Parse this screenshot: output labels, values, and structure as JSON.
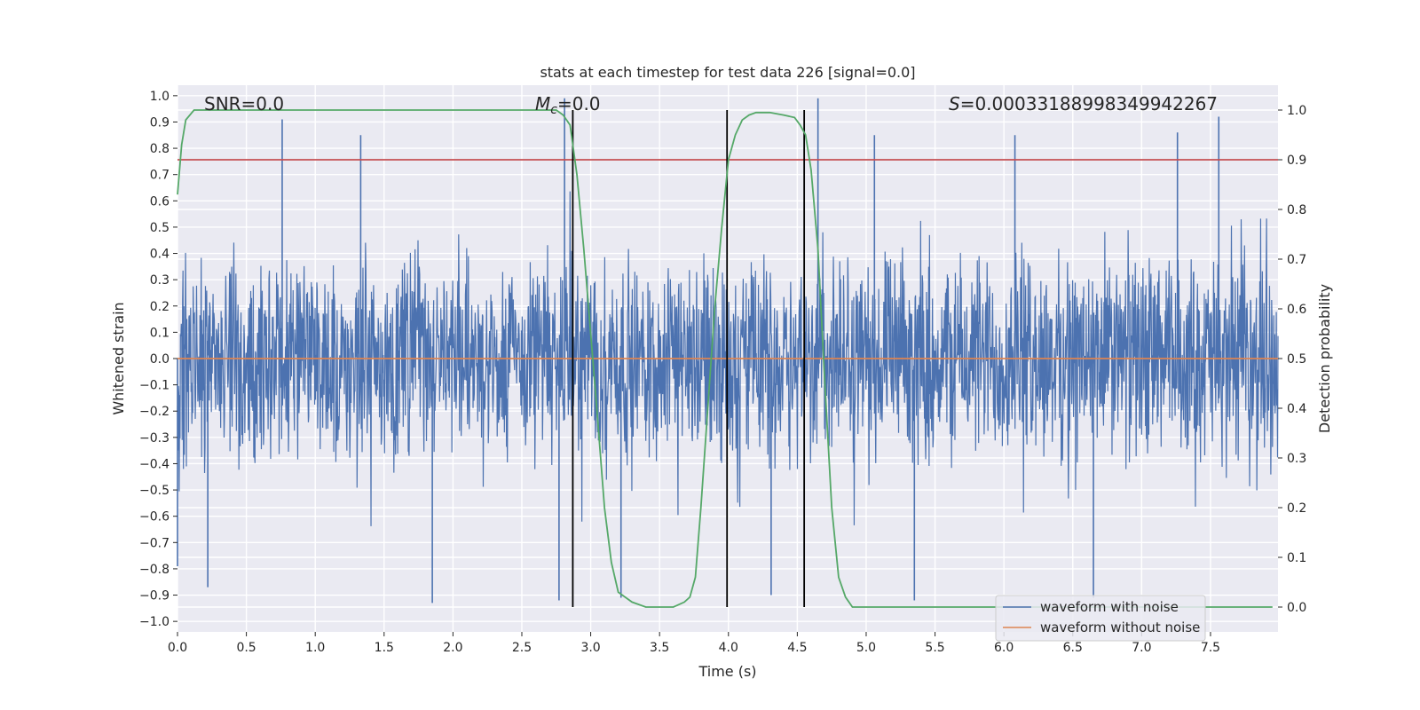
{
  "chart_data": {
    "type": "line",
    "title": "stats at each timestep for test data 226 [signal=0.0]",
    "xlabel": "Time (s)",
    "ylabel_left": "Whitened strain",
    "ylabel_right": "Detection probability",
    "xlim": [
      0,
      7.99
    ],
    "ylim_left": [
      -1.04,
      1.04
    ],
    "ylim_right": [
      -0.05,
      1.05
    ],
    "x_ticks": [
      "0.0",
      "0.5",
      "1.0",
      "1.5",
      "2.0",
      "2.5",
      "3.0",
      "3.5",
      "4.0",
      "4.5",
      "5.0",
      "5.5",
      "6.0",
      "6.5",
      "7.0",
      "7.5"
    ],
    "y_left_ticks": [
      "1.0",
      "0.9",
      "0.8",
      "0.7",
      "0.6",
      "0.5",
      "0.4",
      "0.3",
      "0.2",
      "0.1",
      "0.0",
      "-0.1",
      "-0.2",
      "-0.3",
      "-0.4",
      "-0.5",
      "-0.6",
      "-0.7",
      "-0.8",
      "-0.9",
      "-1.0"
    ],
    "y_right_ticks": [
      "1.0",
      "0.9",
      "0.8",
      "0.7",
      "0.6",
      "0.5",
      "0.4",
      "0.3",
      "0.2",
      "0.1",
      "0.0"
    ],
    "grid": true,
    "legend_position": "lower-right",
    "annotations": {
      "snr": "SNR=0.0",
      "mc": "M_c=0.0",
      "s": "S=0.0003318899834994226​7"
    },
    "noise_waveform": {
      "name": "waveform with noise",
      "color": "#4c72b0",
      "envelope_upper_typical": 0.45,
      "envelope_lower_typical": -0.45,
      "notable_peaks": [
        {
          "x": 0.76,
          "y": 0.91
        },
        {
          "x": 1.33,
          "y": 0.85
        },
        {
          "x": 2.81,
          "y": 0.99
        },
        {
          "x": 4.65,
          "y": 0.99
        },
        {
          "x": 5.06,
          "y": 0.85
        },
        {
          "x": 7.26,
          "y": 0.86
        },
        {
          "x": 7.56,
          "y": 0.92
        },
        {
          "x": 6.08,
          "y": 0.85
        }
      ],
      "notable_troughs": [
        {
          "x": 0.22,
          "y": -0.87
        },
        {
          "x": 1.85,
          "y": -0.93
        },
        {
          "x": 2.77,
          "y": -0.92
        },
        {
          "x": 3.22,
          "y": -0.91
        },
        {
          "x": 4.31,
          "y": -0.9
        },
        {
          "x": 5.35,
          "y": -0.92
        },
        {
          "x": 6.65,
          "y": -0.91
        },
        {
          "x": 0.0,
          "y": -0.79
        }
      ]
    },
    "clean_waveform": {
      "name": "waveform without noise",
      "color": "#dd8452",
      "value": 0.0
    },
    "detection_probability": {
      "color": "#55a868",
      "x": [
        0.0,
        0.03,
        0.06,
        0.12,
        0.5,
        1.0,
        2.0,
        2.5,
        2.75,
        2.8,
        2.85,
        2.9,
        2.95,
        3.0,
        3.05,
        3.1,
        3.15,
        3.2,
        3.3,
        3.4,
        3.5,
        3.6,
        3.68,
        3.72,
        3.76,
        3.8,
        3.85,
        3.9,
        3.95,
        4.0,
        4.05,
        4.1,
        4.15,
        4.2,
        4.3,
        4.4,
        4.48,
        4.52,
        4.56,
        4.6,
        4.65,
        4.7,
        4.75,
        4.8,
        4.85,
        4.9,
        5.0,
        6.0,
        7.0,
        7.95
      ],
      "y": [
        0.83,
        0.93,
        0.98,
        1.0,
        1.0,
        1.0,
        1.0,
        1.0,
        1.0,
        0.99,
        0.97,
        0.87,
        0.72,
        0.55,
        0.38,
        0.2,
        0.09,
        0.03,
        0.01,
        0.0,
        0.0,
        0.0,
        0.01,
        0.02,
        0.06,
        0.2,
        0.4,
        0.6,
        0.76,
        0.9,
        0.95,
        0.98,
        0.99,
        0.995,
        0.995,
        0.99,
        0.985,
        0.97,
        0.95,
        0.88,
        0.72,
        0.45,
        0.2,
        0.06,
        0.02,
        0.0,
        0.0,
        0.0,
        0.0,
        0.0
      ]
    },
    "threshold_line": {
      "color": "#c44e52",
      "value_right": 0.9
    },
    "vertical_lines": {
      "color": "#000000",
      "x": [
        2.87,
        3.99,
        4.55
      ],
      "y_range_right": [
        0.0,
        1.0
      ]
    }
  }
}
